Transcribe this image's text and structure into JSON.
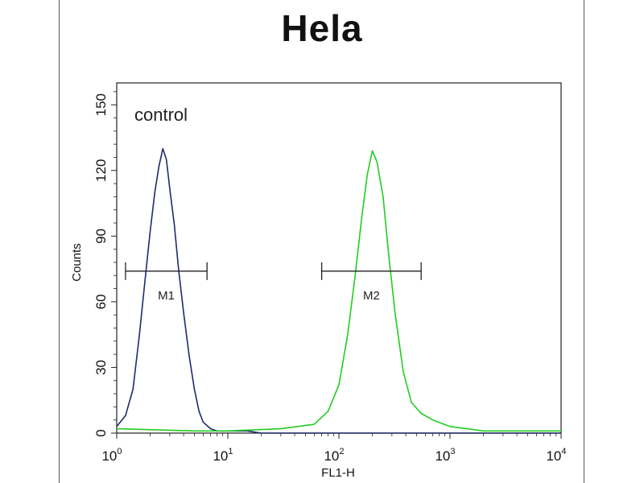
{
  "chart_data": {
    "type": "line",
    "title": "Hela",
    "xlabel": "FL1-H",
    "ylabel": "Counts",
    "x_scale": "log",
    "xlim": [
      1,
      10000
    ],
    "ylim": [
      0,
      160
    ],
    "y_ticks": [
      0,
      30,
      60,
      90,
      120,
      150
    ],
    "x_ticks": [
      {
        "value": 1,
        "base": "10",
        "exp": "0"
      },
      {
        "value": 10,
        "base": "10",
        "exp": "1"
      },
      {
        "value": 100,
        "base": "10",
        "exp": "2"
      },
      {
        "value": 1000,
        "base": "10",
        "exp": "3"
      },
      {
        "value": 10000,
        "base": "10",
        "exp": "4"
      }
    ],
    "annotation": "control",
    "series": [
      {
        "color": "#1f2a6e",
        "x": [
          1,
          1.2,
          1.4,
          1.6,
          1.8,
          2.0,
          2.2,
          2.4,
          2.6,
          2.8,
          3.0,
          3.3,
          3.6,
          4.0,
          4.5,
          5.0,
          5.5,
          6.0,
          7.0,
          8.0,
          10,
          15,
          20,
          40,
          100,
          1000,
          10000
        ],
        "y": [
          3,
          8,
          20,
          45,
          70,
          92,
          110,
          122,
          130,
          125,
          112,
          95,
          75,
          55,
          35,
          20,
          10,
          5,
          2,
          1,
          1,
          1,
          0,
          0,
          0,
          0,
          0
        ]
      },
      {
        "color": "#22cc22",
        "x": [
          1,
          5,
          10,
          30,
          60,
          80,
          100,
          120,
          140,
          160,
          180,
          200,
          220,
          250,
          280,
          320,
          380,
          450,
          550,
          700,
          1000,
          2000,
          10000
        ],
        "y": [
          2,
          1,
          1,
          2,
          4,
          10,
          22,
          45,
          72,
          98,
          118,
          129,
          124,
          108,
          82,
          55,
          28,
          14,
          9,
          6,
          3,
          1,
          1
        ]
      }
    ],
    "markers": [
      {
        "label": "M1",
        "x_start": 1.2,
        "x_end": 6.5,
        "y": 74
      },
      {
        "label": "M2",
        "x_start": 70,
        "x_end": 550,
        "y": 74
      }
    ]
  }
}
